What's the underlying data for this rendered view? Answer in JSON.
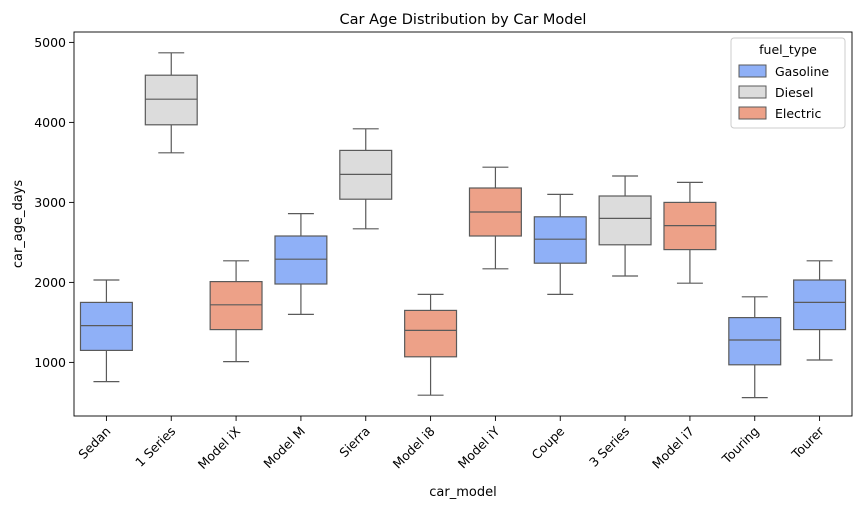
{
  "chart_data": {
    "type": "box",
    "title": "Car Age Distribution by Car Model",
    "xlabel": "car_model",
    "ylabel": "car_age_days",
    "ylim": [
      330,
      5130
    ],
    "yticks": [
      1000,
      2000,
      3000,
      4000,
      5000
    ],
    "grid": false,
    "legend": {
      "title": "fuel_type",
      "placement": "top-right",
      "entries": [
        {
          "name": "Gasoline",
          "color": "#8FB0F7"
        },
        {
          "name": "Diesel",
          "color": "#DCDCDC"
        },
        {
          "name": "Electric",
          "color": "#EDA188"
        }
      ]
    },
    "categories": [
      "Sedan",
      "1 Series",
      "Model iX",
      "Model M",
      "Sierra",
      "Model i8",
      "Model iY",
      "Coupe",
      "3 Series",
      "Model i7",
      "Touring",
      "Tourer"
    ],
    "boxes": [
      {
        "category": "Sedan",
        "fuel_type": "Gasoline",
        "min": 760,
        "q1": 1150,
        "median": 1460,
        "q3": 1750,
        "max": 2030
      },
      {
        "category": "1 Series",
        "fuel_type": "Diesel",
        "min": 3620,
        "q1": 3970,
        "median": 4290,
        "q3": 4590,
        "max": 4870
      },
      {
        "category": "Model iX",
        "fuel_type": "Electric",
        "min": 1010,
        "q1": 1410,
        "median": 1720,
        "q3": 2010,
        "max": 2270
      },
      {
        "category": "Model M",
        "fuel_type": "Gasoline",
        "min": 1600,
        "q1": 1980,
        "median": 2290,
        "q3": 2580,
        "max": 2860
      },
      {
        "category": "Sierra",
        "fuel_type": "Diesel",
        "min": 2670,
        "q1": 3040,
        "median": 3350,
        "q3": 3650,
        "max": 3920
      },
      {
        "category": "Model i8",
        "fuel_type": "Electric",
        "min": 590,
        "q1": 1070,
        "median": 1400,
        "q3": 1650,
        "max": 1850
      },
      {
        "category": "Model iY",
        "fuel_type": "Electric",
        "min": 2170,
        "q1": 2580,
        "median": 2880,
        "q3": 3180,
        "max": 3440
      },
      {
        "category": "Coupe",
        "fuel_type": "Gasoline",
        "min": 1850,
        "q1": 2240,
        "median": 2540,
        "q3": 2820,
        "max": 3100
      },
      {
        "category": "3 Series",
        "fuel_type": "Diesel",
        "min": 2080,
        "q1": 2470,
        "median": 2800,
        "q3": 3080,
        "max": 3330
      },
      {
        "category": "Model i7",
        "fuel_type": "Electric",
        "min": 1990,
        "q1": 2410,
        "median": 2710,
        "q3": 3000,
        "max": 3250
      },
      {
        "category": "Touring",
        "fuel_type": "Gasoline",
        "min": 560,
        "q1": 970,
        "median": 1280,
        "q3": 1560,
        "max": 1820
      },
      {
        "category": "Tourer",
        "fuel_type": "Gasoline",
        "min": 1030,
        "q1": 1410,
        "median": 1750,
        "q3": 2030,
        "max": 2270
      }
    ]
  }
}
